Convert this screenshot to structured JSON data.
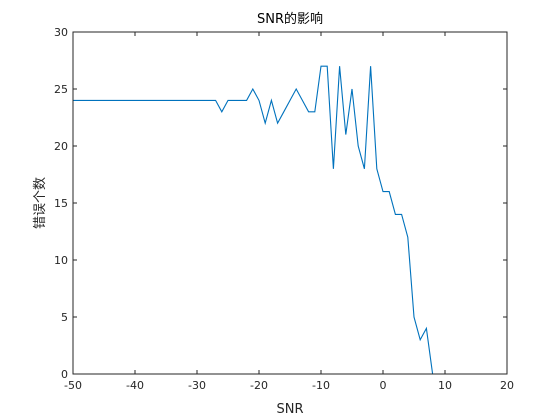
{
  "chart_data": {
    "type": "line",
    "title": "SNR的影响",
    "xlabel": "SNR",
    "ylabel": "错误个数",
    "xlim": [
      -50,
      20
    ],
    "ylim": [
      0,
      30
    ],
    "xticks": [
      -50,
      -40,
      -30,
      -20,
      -10,
      0,
      10,
      20
    ],
    "yticks": [
      0,
      5,
      10,
      15,
      20,
      25,
      30
    ],
    "grid": false,
    "box": true,
    "series": [
      {
        "color": "#0072BD",
        "x": [
          -50,
          -49,
          -48,
          -47,
          -46,
          -45,
          -44,
          -43,
          -42,
          -41,
          -40,
          -39,
          -38,
          -37,
          -36,
          -35,
          -34,
          -33,
          -32,
          -31,
          -30,
          -29,
          -28,
          -27,
          -26,
          -25,
          -24,
          -23,
          -22,
          -21,
          -20,
          -19,
          -18,
          -17,
          -16,
          -15,
          -14,
          -13,
          -12,
          -11,
          -10,
          -9,
          -8,
          -7,
          -6,
          -5,
          -4,
          -3,
          -2,
          -1,
          0,
          1,
          2,
          3,
          4,
          5,
          6,
          7,
          8,
          9,
          10,
          11,
          12,
          13,
          14,
          15,
          16,
          17,
          18,
          19,
          20
        ],
        "y": [
          24,
          24,
          24,
          24,
          24,
          24,
          24,
          24,
          24,
          24,
          24,
          24,
          24,
          24,
          24,
          24,
          24,
          24,
          24,
          24,
          24,
          24,
          24,
          24,
          23,
          24,
          24,
          24,
          24,
          25,
          24,
          22,
          24,
          22,
          23,
          24,
          25,
          24,
          23,
          23,
          27,
          27,
          18,
          27,
          21,
          25,
          20,
          18,
          27,
          18,
          16,
          16,
          14,
          14,
          12,
          5,
          3,
          4,
          0,
          0,
          0,
          0,
          0,
          0,
          0,
          0,
          0,
          0,
          0,
          0,
          0
        ]
      }
    ]
  }
}
